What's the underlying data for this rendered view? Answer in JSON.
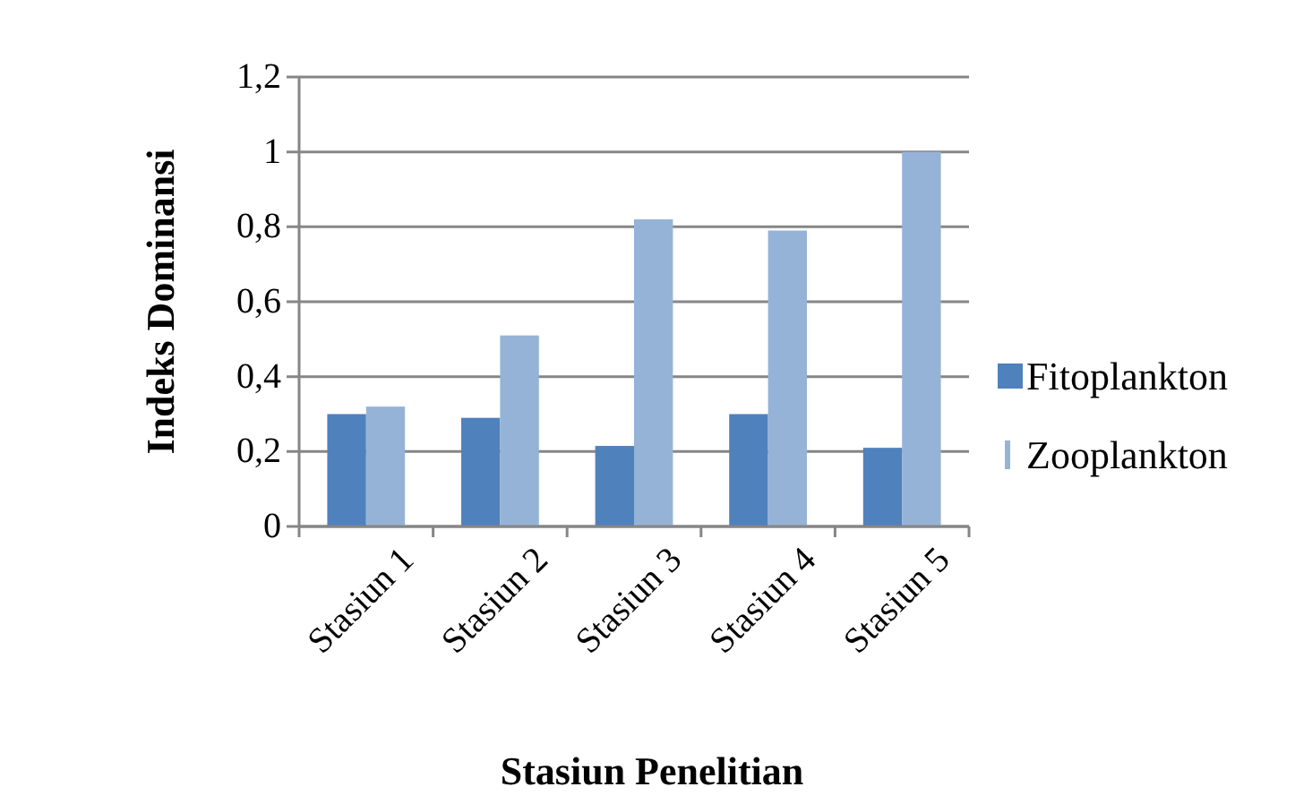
{
  "chart_data": {
    "type": "bar",
    "xlabel": "Stasiun Penelitian",
    "ylabel": "Indeks Dominansi",
    "categories": [
      "Stasiun 1",
      "Stasiun 2",
      "Stasiun 3",
      "Stasiun 4",
      "Stasiun 5"
    ],
    "series": [
      {
        "name": "Fitoplankton",
        "color": "#4f81bd",
        "values": [
          0.3,
          0.29,
          0.215,
          0.3,
          0.21
        ]
      },
      {
        "name": "Zooplankton",
        "color": "#95b3d7",
        "values": [
          0.32,
          0.51,
          0.82,
          0.79,
          1.0
        ]
      }
    ],
    "ylim": [
      0,
      1.2
    ],
    "yticks": [
      0,
      {
        "value": 0.2,
        "label": "0,2"
      },
      {
        "value": 0.4,
        "label": "0,4"
      },
      {
        "value": 0.6,
        "label": "0,6"
      },
      {
        "value": 0.8,
        "label": "0,8"
      },
      1,
      {
        "value": 1.2,
        "label": "1,2"
      }
    ],
    "grid": "y",
    "legend": "right"
  }
}
